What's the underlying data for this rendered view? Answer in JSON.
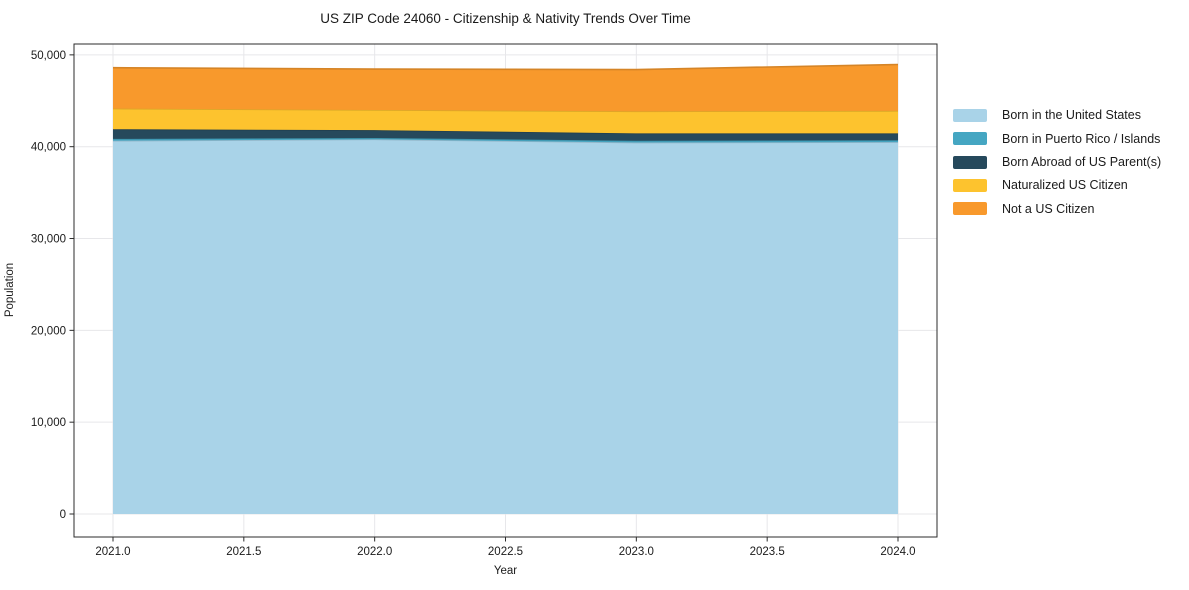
{
  "figure": {
    "title": "US ZIP Code 24060 - Citizenship & Nativity Trends Over Time",
    "xlabel": "Year",
    "ylabel": "Population"
  },
  "style": {
    "text_color": "#1a1a1a",
    "grid_color": "#e7e7ea",
    "spine_color": "#2b2b2b",
    "background": "#ffffff"
  },
  "chart_data": {
    "type": "area",
    "stacked": true,
    "title": "US ZIP Code 24060 - Citizenship & Nativity Trends Over Time",
    "xlabel": "Year",
    "ylabel": "Population",
    "grid": true,
    "legend_position": "right",
    "x": [
      2021,
      2022,
      2023,
      2024
    ],
    "series": [
      {
        "name": "Born in the United States",
        "color": "#a9d3e8",
        "values": [
          40650,
          40800,
          40450,
          40500
        ]
      },
      {
        "name": "Born in Puerto Rico / Islands",
        "color": "#45a6c2",
        "values": [
          200,
          150,
          200,
          200
        ]
      },
      {
        "name": "Born Abroad of US Parent(s)",
        "color": "#26495c",
        "values": [
          1050,
          850,
          800,
          750
        ]
      },
      {
        "name": "Naturalized US Citizen",
        "color": "#fdc32e",
        "values": [
          2250,
          2200,
          2400,
          2450
        ]
      },
      {
        "name": "Not a US Citizen",
        "color": "#f8992c",
        "values": [
          4450,
          4450,
          4550,
          5050
        ]
      }
    ],
    "xlim": [
      2020.851,
      2024.149
    ],
    "ylim": [
      -2505,
      51183
    ],
    "xticks": {
      "values": [
        2021.0,
        2021.5,
        2022.0,
        2022.5,
        2023.0,
        2023.5,
        2024.0
      ],
      "labels": [
        "2021.0",
        "2021.5",
        "2022.0",
        "2022.5",
        "2023.0",
        "2023.5",
        "2024.0"
      ]
    },
    "yticks": {
      "values": [
        0,
        10000,
        20000,
        30000,
        40000,
        50000
      ],
      "labels": [
        "0",
        "10,000",
        "20,000",
        "30,000",
        "40,000",
        "50,000"
      ]
    }
  }
}
